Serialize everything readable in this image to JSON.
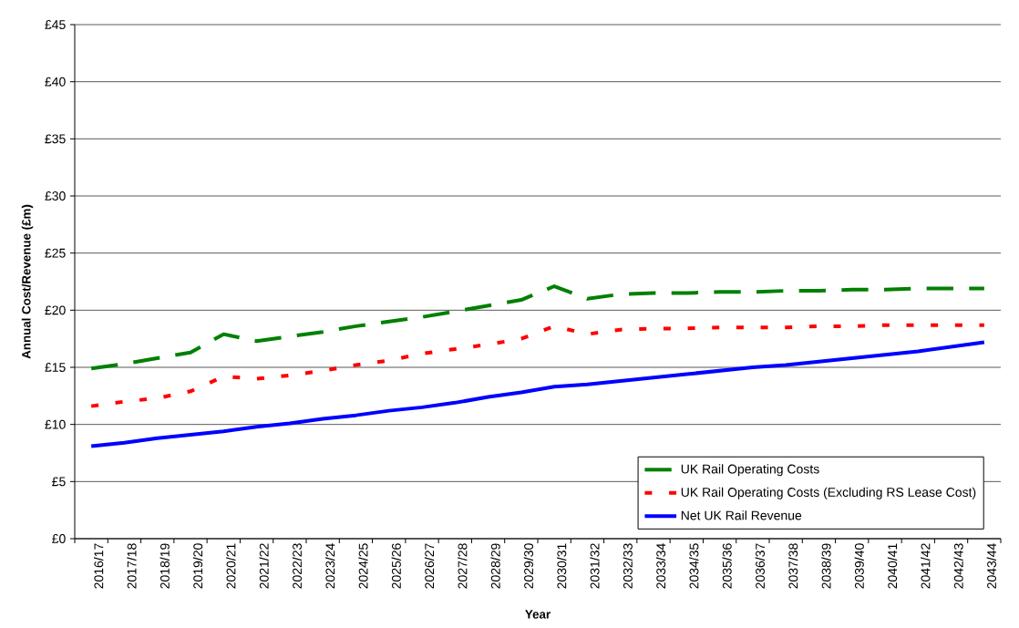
{
  "chart_data": {
    "type": "line",
    "xlabel": "Year",
    "ylabel": "Annual Cost/Revenue (£m)",
    "categories": [
      "2016/17",
      "2017/18",
      "2018/19",
      "2019/20",
      "2020/21",
      "2021/22",
      "2022/23",
      "2023/24",
      "2024/25",
      "2025/26",
      "2026/27",
      "2027/28",
      "2028/29",
      "2029/30",
      "2030/31",
      "2031/32",
      "2032/33",
      "2033/34",
      "2034/35",
      "2035/36",
      "2036/37",
      "2037/38",
      "2038/39",
      "2039/40",
      "2040/41",
      "2041/42",
      "2042/43",
      "2043/44"
    ],
    "series": [
      {
        "name": "UK Rail Operating Costs",
        "color": "#008000",
        "line_style": "dashed",
        "values": [
          14.9,
          15.3,
          15.8,
          16.3,
          17.9,
          17.3,
          17.7,
          18.1,
          18.6,
          19.0,
          19.4,
          19.9,
          20.4,
          20.9,
          22.1,
          21.0,
          21.4,
          21.5,
          21.5,
          21.6,
          21.6,
          21.7,
          21.7,
          21.8,
          21.8,
          21.9,
          21.9,
          21.9
        ]
      },
      {
        "name": "UK Rail Operating Costs (Excluding RS Lease Cost)",
        "color": "#ff0000",
        "line_style": "dotted",
        "values": [
          11.6,
          12.0,
          12.3,
          12.9,
          14.2,
          14.0,
          14.3,
          14.7,
          15.2,
          15.6,
          16.2,
          16.6,
          17.0,
          17.5,
          18.6,
          17.9,
          18.3,
          18.4,
          18.4,
          18.5,
          18.5,
          18.5,
          18.6,
          18.6,
          18.7,
          18.7,
          18.7,
          18.7
        ]
      },
      {
        "name": "Net UK Rail Revenue",
        "color": "#0000ff",
        "line_style": "solid",
        "values": [
          8.1,
          8.4,
          8.8,
          9.1,
          9.4,
          9.8,
          10.1,
          10.5,
          10.8,
          11.2,
          11.5,
          11.9,
          12.4,
          12.8,
          13.3,
          13.5,
          13.8,
          14.1,
          14.4,
          14.7,
          15.0,
          15.2,
          15.5,
          15.8,
          16.1,
          16.4,
          16.8,
          17.2
        ]
      }
    ],
    "ylim": [
      0,
      45
    ],
    "yticks": [
      {
        "value": 0,
        "label": "£0"
      },
      {
        "value": 5,
        "label": "£5"
      },
      {
        "value": 10,
        "label": "£10"
      },
      {
        "value": 15,
        "label": "£15"
      },
      {
        "value": 20,
        "label": "£20"
      },
      {
        "value": 25,
        "label": "£25"
      },
      {
        "value": 30,
        "label": "£30"
      },
      {
        "value": 35,
        "label": "£35"
      },
      {
        "value": 40,
        "label": "£40"
      },
      {
        "value": 45,
        "label": "£45"
      }
    ],
    "grid": "y",
    "legend": "bottom right"
  }
}
